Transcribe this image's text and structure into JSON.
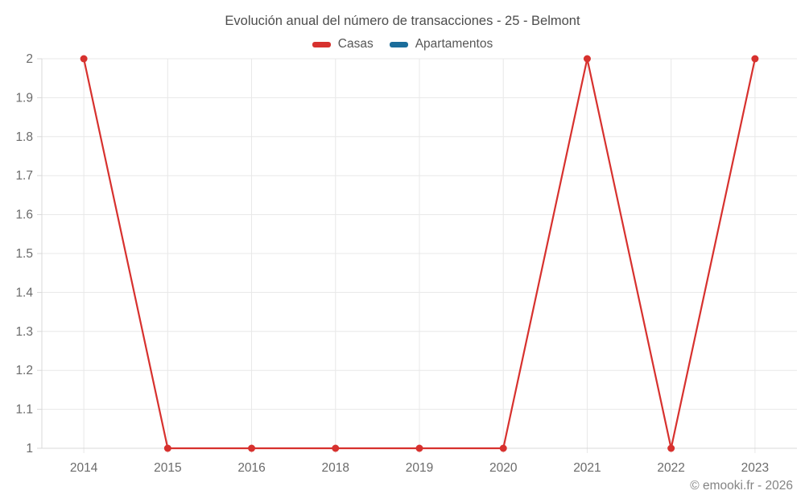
{
  "header": {
    "title": "Evolución anual del número de transacciones - 25 - Belmont"
  },
  "footer": {
    "credit": "© emooki.fr - 2026"
  },
  "colors": {
    "casas": "#d7312e",
    "apartamentos": "#1b6d9b",
    "grid": "#e8e8e8",
    "axis": "#d8d8d8",
    "tick_label": "#6b6b6b",
    "title_text": "#4d4d4d",
    "legend_text": "#565656",
    "footer_text": "#848484"
  },
  "chart_data": {
    "type": "line",
    "title": "Evolución anual del número de transacciones - 25 - Belmont",
    "categories": [
      "2014",
      "2015",
      "2016",
      "2018",
      "2019",
      "2020",
      "2021",
      "2022",
      "2023"
    ],
    "series": [
      {
        "name": "Casas",
        "color": "#d7312e",
        "values": [
          2,
          1,
          1,
          1,
          1,
          1,
          2,
          1,
          2
        ]
      },
      {
        "name": "Apartamentos",
        "color": "#1b6d9b",
        "values": [
          null,
          null,
          null,
          null,
          null,
          null,
          null,
          null,
          null
        ]
      }
    ],
    "xlabel": "",
    "ylabel": "",
    "ylim": [
      1,
      2
    ],
    "ytick_step": 0.1,
    "yticks": [
      "1",
      "1.1",
      "1.2",
      "1.3",
      "1.4",
      "1.5",
      "1.6",
      "1.7",
      "1.8",
      "1.9",
      "2"
    ],
    "grid": true,
    "legend_position": "top"
  }
}
